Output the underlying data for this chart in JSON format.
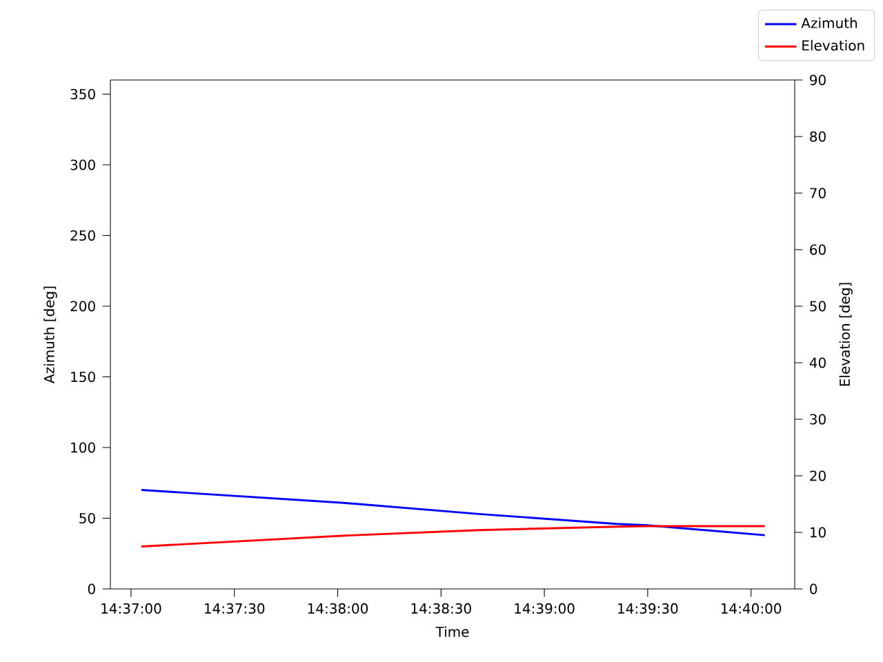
{
  "chart_data": {
    "type": "line",
    "xlabel": "Time",
    "ylabel": "Azimuth [deg]",
    "y2label": "Elevation [deg]",
    "x": [
      14.6175,
      14.633611,
      14.644722,
      14.655833,
      14.658333,
      14.667778
    ],
    "series": [
      {
        "name": "Azimuth",
        "color": "#0000ff",
        "values": [
          70,
          61,
          53,
          46,
          45,
          38
        ]
      },
      {
        "name": "Elevation",
        "color": "#ff0000",
        "axis": "y2",
        "values": [
          7.5,
          9.4,
          10.4,
          11.0,
          11.1,
          11.1
        ]
      }
    ],
    "xlim": [
      14.615,
      14.67019
    ],
    "xticks": [
      {
        "value": 14.616667,
        "label": "14:37:00"
      },
      {
        "value": 14.625,
        "label": "14:37:30"
      },
      {
        "value": 14.633333,
        "label": "14:38:00"
      },
      {
        "value": 14.641667,
        "label": "14:38:30"
      },
      {
        "value": 14.65,
        "label": "14:39:00"
      },
      {
        "value": 14.658333,
        "label": "14:39:30"
      },
      {
        "value": 14.666667,
        "label": "14:40:00"
      }
    ],
    "ylim": [
      0,
      360
    ],
    "yticks": [
      0,
      50,
      100,
      150,
      200,
      250,
      300,
      350
    ],
    "y2lim": [
      0,
      90
    ],
    "y2ticks": [
      0,
      10,
      20,
      30,
      40,
      50,
      60,
      70,
      80,
      90
    ],
    "legend": "top right",
    "grid": false,
    "marker": "none",
    "line_style": "solid"
  }
}
